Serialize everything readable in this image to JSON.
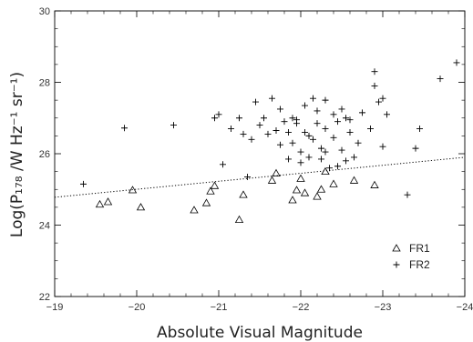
{
  "chart_data": {
    "type": "scatter",
    "xlabel": "Absolute Visual Magnitude",
    "ylabel": "Log(P₁₇₈ /W Hz⁻¹ sr⁻¹)",
    "xlim": [
      -19,
      -24
    ],
    "ylim": [
      22,
      30
    ],
    "xticks": [
      -19,
      -20,
      -21,
      -22,
      -23,
      -24
    ],
    "xtick_labels": [
      "−19",
      "−20",
      "−21",
      "−22",
      "−23",
      "−24"
    ],
    "yticks": [
      22,
      24,
      26,
      28,
      30
    ],
    "ytick_labels": [
      "22",
      "24",
      "26",
      "28",
      "30"
    ],
    "x_minor_step": 0.2,
    "y_minor_step": 0.5,
    "grid": false,
    "legend_position": "bottom-right",
    "series": [
      {
        "name": "FR1",
        "marker": "triangle",
        "points": [
          [
            -19.55,
            24.58
          ],
          [
            -19.65,
            24.65
          ],
          [
            -19.95,
            24.98
          ],
          [
            -20.05,
            24.5
          ],
          [
            -20.7,
            24.42
          ],
          [
            -20.85,
            24.62
          ],
          [
            -20.9,
            24.95
          ],
          [
            -20.95,
            25.1
          ],
          [
            -21.25,
            24.15
          ],
          [
            -21.3,
            24.85
          ],
          [
            -21.65,
            25.25
          ],
          [
            -21.7,
            25.45
          ],
          [
            -21.9,
            24.7
          ],
          [
            -21.95,
            24.98
          ],
          [
            -22.0,
            25.3
          ],
          [
            -22.05,
            24.9
          ],
          [
            -22.2,
            24.8
          ],
          [
            -22.25,
            25.0
          ],
          [
            -22.3,
            25.5
          ],
          [
            -22.4,
            25.15
          ],
          [
            -22.65,
            25.25
          ],
          [
            -22.9,
            25.12
          ]
        ]
      },
      {
        "name": "FR2",
        "marker": "plus",
        "points": [
          [
            -19.35,
            25.15
          ],
          [
            -19.85,
            26.72
          ],
          [
            -20.45,
            26.8
          ],
          [
            -20.95,
            27.0
          ],
          [
            -21.0,
            27.1
          ],
          [
            -21.05,
            25.7
          ],
          [
            -21.15,
            26.7
          ],
          [
            -21.25,
            27.0
          ],
          [
            -21.3,
            26.55
          ],
          [
            -21.35,
            25.35
          ],
          [
            -21.4,
            26.4
          ],
          [
            -21.45,
            27.45
          ],
          [
            -21.5,
            26.8
          ],
          [
            -21.55,
            27.0
          ],
          [
            -21.6,
            26.55
          ],
          [
            -21.65,
            27.55
          ],
          [
            -21.7,
            26.65
          ],
          [
            -21.75,
            26.25
          ],
          [
            -21.75,
            27.25
          ],
          [
            -21.8,
            26.9
          ],
          [
            -21.85,
            25.85
          ],
          [
            -21.9,
            27.0
          ],
          [
            -21.9,
            26.3
          ],
          [
            -21.95,
            26.85
          ],
          [
            -22.0,
            26.05
          ],
          [
            -22.05,
            27.35
          ],
          [
            -22.05,
            26.6
          ],
          [
            -22.1,
            25.9
          ],
          [
            -22.15,
            27.55
          ],
          [
            -22.15,
            26.4
          ],
          [
            -22.2,
            26.85
          ],
          [
            -22.25,
            26.15
          ],
          [
            -22.3,
            27.5
          ],
          [
            -22.3,
            26.7
          ],
          [
            -22.35,
            25.6
          ],
          [
            -22.4,
            27.1
          ],
          [
            -22.4,
            26.45
          ],
          [
            -22.45,
            26.9
          ],
          [
            -22.5,
            27.25
          ],
          [
            -22.5,
            26.1
          ],
          [
            -22.55,
            25.8
          ],
          [
            -22.6,
            26.6
          ],
          [
            -22.65,
            25.9
          ],
          [
            -22.7,
            26.3
          ],
          [
            -22.75,
            27.15
          ],
          [
            -22.85,
            26.7
          ],
          [
            -22.9,
            28.3
          ],
          [
            -22.9,
            27.9
          ],
          [
            -22.95,
            27.45
          ],
          [
            -23.0,
            27.55
          ],
          [
            -23.0,
            26.2
          ],
          [
            -23.05,
            27.1
          ],
          [
            -23.3,
            24.85
          ],
          [
            -23.4,
            26.15
          ],
          [
            -23.45,
            26.7
          ],
          [
            -23.7,
            28.1
          ],
          [
            -23.9,
            28.55
          ],
          [
            -21.95,
            26.95
          ],
          [
            -22.0,
            25.75
          ],
          [
            -22.1,
            26.5
          ],
          [
            -22.2,
            27.2
          ],
          [
            -22.3,
            26.05
          ],
          [
            -22.45,
            25.65
          ],
          [
            -22.6,
            26.95
          ],
          [
            -21.85,
            26.6
          ],
          [
            -22.55,
            27.0
          ],
          [
            -22.25,
            25.85
          ]
        ]
      }
    ],
    "fit_line": {
      "style": "dotted",
      "points": [
        [
          -19,
          24.78
        ],
        [
          -24,
          25.9
        ]
      ]
    }
  }
}
